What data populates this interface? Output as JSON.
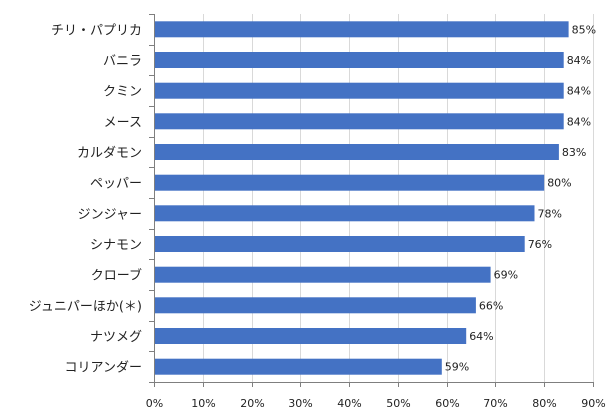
{
  "chart_data": {
    "type": "bar",
    "orientation": "horizontal",
    "categories": [
      "チリ・パプリカ",
      "バニラ",
      "クミン",
      "メース",
      "カルダモン",
      "ペッパー",
      "ジンジャー",
      "シナモン",
      "クローブ",
      "ジュニパーほか(＊)",
      "ナツメグ",
      "コリアンダー"
    ],
    "values": [
      85,
      84,
      84,
      84,
      83,
      80,
      78,
      76,
      69,
      66,
      64,
      59
    ],
    "data_labels": [
      "85%",
      "84%",
      "84%",
      "84%",
      "83%",
      "80%",
      "78%",
      "76%",
      "69%",
      "66%",
      "64%",
      "59%"
    ],
    "xlim": [
      0,
      90
    ],
    "x_ticks": [
      0,
      10,
      20,
      30,
      40,
      50,
      60,
      70,
      80,
      90
    ],
    "x_tick_labels": [
      "0%",
      "10%",
      "20%",
      "30%",
      "40%",
      "50%",
      "60%",
      "70%",
      "80%",
      "90%"
    ],
    "grid": true,
    "bar_color": "#4472c4",
    "grid_color": "#d9d9d9",
    "axis_color": "#7f7f7f",
    "title": "",
    "xlabel": "",
    "ylabel": ""
  }
}
